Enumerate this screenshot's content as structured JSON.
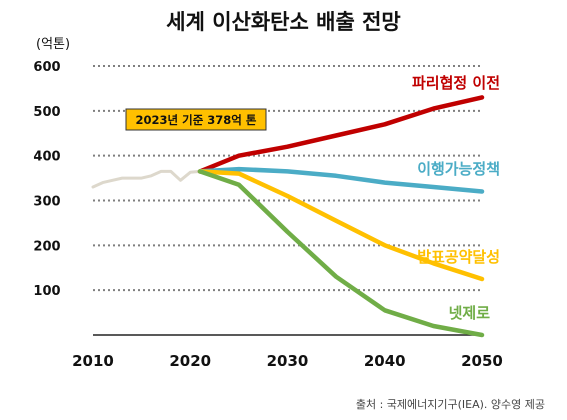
{
  "chart_data": {
    "type": "line",
    "title": "세계 이산화탄소 배출 전망",
    "ylabel": "(억톤)",
    "xlim": [
      2010,
      2050
    ],
    "ylim": [
      0,
      600
    ],
    "x_ticks": [
      2010,
      2020,
      2030,
      2040,
      2050
    ],
    "y_ticks": [
      100,
      200,
      300,
      400,
      500,
      600
    ],
    "grid": "horizontal-dotted",
    "annotation": "2023년 기준 378억 톤",
    "source": "출처 : 국제에너지기구(IEA). 양수영 제공",
    "series": [
      {
        "key": "historical",
        "color": "#ddd8cc",
        "x": [
          2010,
          2011,
          2012,
          2013,
          2014,
          2015,
          2016,
          2017,
          2018,
          2019,
          2020,
          2021
        ],
        "values": [
          330,
          340,
          345,
          350,
          350,
          350,
          355,
          365,
          365,
          345,
          363,
          365
        ]
      },
      {
        "key": "paris",
        "name": "파리협정 이전",
        "color": "#c00000",
        "x": [
          2021,
          2025,
          2030,
          2035,
          2040,
          2045,
          2050
        ],
        "values": [
          365,
          400,
          420,
          445,
          470,
          505,
          530
        ]
      },
      {
        "key": "current",
        "name": "이행가능정책",
        "color": "#4bacc6",
        "x": [
          2021,
          2025,
          2030,
          2035,
          2040,
          2045,
          2050
        ],
        "values": [
          365,
          370,
          365,
          355,
          340,
          330,
          320
        ]
      },
      {
        "key": "pledges",
        "name": "발표공약달성",
        "color": "#ffc000",
        "x": [
          2021,
          2025,
          2030,
          2035,
          2040,
          2045,
          2050
        ],
        "values": [
          365,
          360,
          310,
          255,
          200,
          160,
          125
        ]
      },
      {
        "key": "netzero",
        "name": "넷제로",
        "color": "#70ad47",
        "x": [
          2021,
          2025,
          2030,
          2035,
          2040,
          2045,
          2050
        ],
        "values": [
          365,
          335,
          230,
          130,
          55,
          20,
          0
        ]
      }
    ]
  }
}
